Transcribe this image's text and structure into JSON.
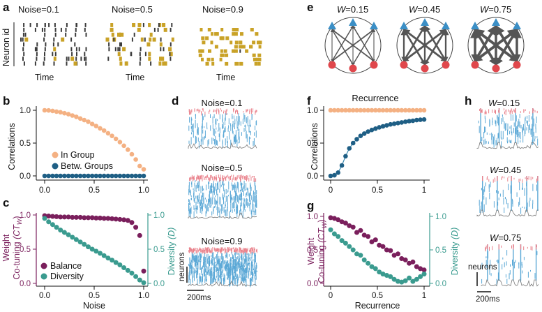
{
  "colors": {
    "orange": "#f4b183",
    "dark_teal": "#1f5f85",
    "purple": "#7a1f5c",
    "green_teal": "#3a9b8f",
    "raster_dark": "#3b3b3b",
    "raster_gold": "#c9a227",
    "blue_spike": "#5ba8d6",
    "red_spike": "#e9828c",
    "node_blue": "#3b8fc6",
    "node_red": "#e0474c"
  },
  "panel_labels": {
    "a": "a",
    "b": "b",
    "c": "c",
    "d": "d",
    "e": "e",
    "f": "f",
    "g": "g",
    "h": "h"
  },
  "panel_a": {
    "ylabel": "Neuron id",
    "xlabel": "Time",
    "titles": [
      "Noise=0.1",
      "Noise=0.5",
      "Noise=0.9"
    ]
  },
  "panel_d": {
    "titles": [
      "Noise=0.1",
      "Noise=0.5",
      "Noise=0.9"
    ],
    "scale_v": "neurons",
    "scale_h": "200ms"
  },
  "panel_e": {
    "labels": [
      {
        "var": "W",
        "eq": "=0.15"
      },
      {
        "var": "W",
        "eq": "=0.45"
      },
      {
        "var": "W",
        "eq": "=0.75"
      }
    ]
  },
  "panel_h": {
    "labels": [
      {
        "var": "W",
        "eq": "=0.15"
      },
      {
        "var": "W",
        "eq": "=0.45"
      },
      {
        "var": "W",
        "eq": "=0.75"
      }
    ],
    "scale_v": "neurons",
    "scale_h": "200ms"
  },
  "chart_data": [
    {
      "id": "b",
      "type": "scatter",
      "ylabel": "Correlations",
      "xlim": [
        0,
        1
      ],
      "ylim": [
        0,
        1
      ],
      "xticks": [
        "0.0",
        "0.5",
        "1.0"
      ],
      "yticks": [
        "0.0",
        "0.5",
        "1.0"
      ],
      "series": [
        {
          "name": "In Group",
          "x": [
            0,
            0.04,
            0.08,
            0.12,
            0.16,
            0.2,
            0.24,
            0.28,
            0.32,
            0.36,
            0.4,
            0.44,
            0.48,
            0.52,
            0.56,
            0.6,
            0.64,
            0.68,
            0.72,
            0.76,
            0.8,
            0.84,
            0.88,
            0.92,
            0.96,
            1.0
          ],
          "y": [
            1.0,
            0.998,
            0.99,
            0.98,
            0.97,
            0.955,
            0.94,
            0.92,
            0.9,
            0.875,
            0.85,
            0.825,
            0.79,
            0.76,
            0.725,
            0.69,
            0.65,
            0.61,
            0.565,
            0.515,
            0.46,
            0.4,
            0.33,
            0.25,
            0.15,
            0.1
          ]
        },
        {
          "name": "Betw. Groups",
          "x": [
            0,
            0.04,
            0.08,
            0.12,
            0.16,
            0.2,
            0.24,
            0.28,
            0.32,
            0.36,
            0.4,
            0.44,
            0.48,
            0.52,
            0.56,
            0.6,
            0.64,
            0.68,
            0.72,
            0.76,
            0.8,
            0.84,
            0.88,
            0.92,
            0.96,
            1.0
          ],
          "y": [
            0,
            0,
            0,
            0,
            0,
            0,
            0,
            0,
            0,
            0,
            0,
            0,
            0,
            0,
            0,
            0,
            0,
            0,
            0,
            0,
            0,
            0,
            0,
            0,
            0,
            0
          ]
        }
      ]
    },
    {
      "id": "c",
      "type": "scatter",
      "xlabel": "Noise",
      "ylabel_left": "Weight",
      "ylabel_left2": "Co-tuning",
      "ylabel_left_math": "(CT",
      "ylabel_left_sub": "W",
      "ylabel_right": "Diversity",
      "ylabel_right_math": "(D)",
      "xlim": [
        0,
        1
      ],
      "ylim": [
        0,
        1
      ],
      "xticks": [
        "0.0",
        "0.5",
        "1.0"
      ],
      "yticks": [
        "0.0",
        "0.5",
        "1.0"
      ],
      "series": [
        {
          "name": "Balance",
          "x": [
            0,
            0.04,
            0.08,
            0.12,
            0.16,
            0.2,
            0.24,
            0.28,
            0.32,
            0.36,
            0.4,
            0.44,
            0.48,
            0.52,
            0.56,
            0.6,
            0.64,
            0.68,
            0.72,
            0.76,
            0.8,
            0.84,
            0.88,
            0.92,
            0.96,
            1.0
          ],
          "y": [
            0.99,
            0.985,
            0.98,
            0.975,
            0.97,
            0.97,
            0.97,
            0.965,
            0.965,
            0.965,
            0.96,
            0.96,
            0.96,
            0.955,
            0.955,
            0.95,
            0.95,
            0.945,
            0.94,
            0.935,
            0.93,
            0.92,
            0.89,
            0.82,
            0.7,
            0.18
          ]
        },
        {
          "name": "Diversity",
          "x": [
            0,
            0.04,
            0.08,
            0.12,
            0.16,
            0.2,
            0.24,
            0.28,
            0.32,
            0.36,
            0.4,
            0.44,
            0.48,
            0.52,
            0.56,
            0.6,
            0.64,
            0.68,
            0.72,
            0.76,
            0.8,
            0.84,
            0.88,
            0.92,
            0.96,
            1.0
          ],
          "y": [
            0.95,
            0.9,
            0.86,
            0.82,
            0.78,
            0.745,
            0.71,
            0.675,
            0.64,
            0.605,
            0.57,
            0.535,
            0.5,
            0.47,
            0.44,
            0.405,
            0.37,
            0.34,
            0.305,
            0.27,
            0.23,
            0.19,
            0.15,
            0.1,
            0.05,
            0.01
          ]
        }
      ]
    },
    {
      "id": "f",
      "type": "scatter",
      "title": "Recurrence",
      "ylabel": "Correlations",
      "xlim": [
        0,
        1
      ],
      "ylim": [
        0,
        1
      ],
      "xticks": [
        "0",
        "0.5",
        "1"
      ],
      "yticks": [
        "0.0",
        "0.5",
        "1.0"
      ],
      "series": [
        {
          "name": "In Group",
          "x": [
            0,
            0.04,
            0.08,
            0.12,
            0.16,
            0.2,
            0.24,
            0.28,
            0.32,
            0.36,
            0.4,
            0.44,
            0.48,
            0.52,
            0.56,
            0.6,
            0.64,
            0.68,
            0.72,
            0.76,
            0.8,
            0.84,
            0.88,
            0.92,
            0.96,
            1.0
          ],
          "y": [
            1,
            1,
            1,
            1,
            1,
            1,
            1,
            1,
            1,
            1,
            1,
            1,
            1,
            1,
            1,
            1,
            1,
            1,
            1,
            1,
            1,
            1,
            1,
            1,
            1,
            1
          ]
        },
        {
          "name": "Betw. Groups",
          "x": [
            0,
            0.04,
            0.08,
            0.12,
            0.16,
            0.2,
            0.24,
            0.28,
            0.32,
            0.36,
            0.4,
            0.44,
            0.48,
            0.52,
            0.56,
            0.6,
            0.64,
            0.68,
            0.72,
            0.76,
            0.8,
            0.84,
            0.88,
            0.92,
            0.96,
            1.0
          ],
          "y": [
            0,
            0.01,
            0.05,
            0.16,
            0.3,
            0.42,
            0.5,
            0.56,
            0.61,
            0.645,
            0.675,
            0.7,
            0.72,
            0.74,
            0.755,
            0.77,
            0.785,
            0.795,
            0.805,
            0.815,
            0.825,
            0.835,
            0.84,
            0.85,
            0.855,
            0.86
          ]
        }
      ]
    },
    {
      "id": "g",
      "type": "scatter",
      "xlabel": "Recurrence",
      "ylabel_left": "Weight",
      "ylabel_left2": "Co-tuning",
      "ylabel_left_math": "(CT",
      "ylabel_left_sub": "W",
      "ylabel_right": "Diversity",
      "ylabel_right_math": "(D)",
      "xlim": [
        0,
        1
      ],
      "ylim": [
        0,
        1
      ],
      "xticks": [
        "0",
        "0.5",
        "1"
      ],
      "yticks": [
        "0.0",
        "0.5",
        "1.0"
      ],
      "series": [
        {
          "name": "Balance",
          "x": [
            0,
            0.04,
            0.08,
            0.12,
            0.16,
            0.2,
            0.24,
            0.28,
            0.32,
            0.36,
            0.4,
            0.44,
            0.48,
            0.52,
            0.56,
            0.6,
            0.64,
            0.68,
            0.72,
            0.76,
            0.8,
            0.84,
            0.88,
            0.92,
            0.96,
            1.0
          ],
          "y": [
            0.98,
            0.97,
            0.95,
            0.92,
            0.9,
            0.86,
            0.84,
            0.76,
            0.79,
            0.72,
            0.7,
            0.62,
            0.65,
            0.57,
            0.55,
            0.5,
            0.49,
            0.42,
            0.44,
            0.37,
            0.35,
            0.3,
            0.32,
            0.25,
            0.22,
            0.2
          ]
        },
        {
          "name": "Diversity",
          "x": [
            0,
            0.04,
            0.08,
            0.12,
            0.16,
            0.2,
            0.24,
            0.28,
            0.32,
            0.36,
            0.4,
            0.44,
            0.48,
            0.52,
            0.56,
            0.6,
            0.64,
            0.68,
            0.72,
            0.76,
            0.8,
            0.84,
            0.88,
            0.92,
            0.96,
            1.0
          ],
          "y": [
            0.8,
            0.74,
            0.7,
            0.64,
            0.6,
            0.55,
            0.5,
            0.44,
            0.42,
            0.35,
            0.3,
            0.25,
            0.22,
            0.17,
            0.14,
            0.12,
            0.1,
            0.06,
            0.03,
            0.02,
            0.04,
            0.08,
            0.03,
            0.06,
            0.1,
            0.14
          ]
        }
      ]
    }
  ]
}
